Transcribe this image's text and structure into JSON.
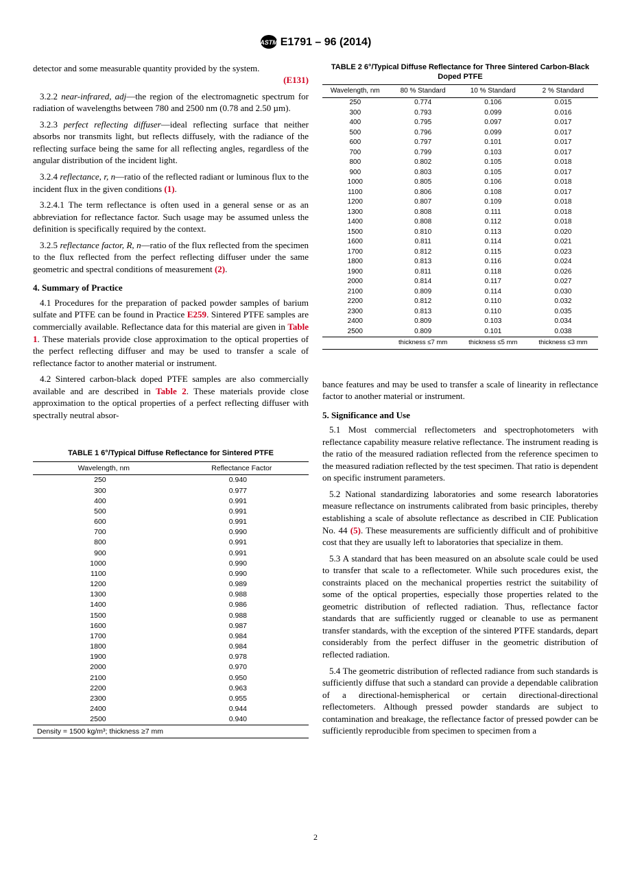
{
  "doc_id": "E1791 – 96 (2014)",
  "page_number": "2",
  "left": {
    "p0": "detector and some measurable quantity provided by the system.",
    "ref0": "(E131)",
    "p322_lead": "3.2.2 ",
    "p322_term": "near-infrared, adj",
    "p322_rest": "—the region of the electromagnetic spectrum for radiation of wavelengths between 780 and 2500 nm (0.78 and 2.50 µm).",
    "p323_lead": "3.2.3 ",
    "p323_term": "perfect reflecting diffuser",
    "p323_rest": "—ideal reflecting surface that neither absorbs nor transmits light, but reflects diffusely, with the radiance of the reflecting surface being the same for all reflecting angles, regardless of the angular distribution of the incident light.",
    "p324_lead": "3.2.4 ",
    "p324_term": "reflectance, r, n",
    "p324_rest": "—ratio of the reflected radiant or luminous flux to the incident flux in the given conditions ",
    "ref1": "(1)",
    "p3241": "3.2.4.1 The term reflectance is often used in a general sense or as an abbreviation for reflectance factor. Such usage may be assumed unless the definition is specifically required by the context.",
    "p325_lead": "3.2.5 ",
    "p325_term": "reflectance factor, R, n",
    "p325_rest": "—ratio of the flux reflected from the specimen to the flux reflected from the perfect reflecting diffuser under the same geometric and spectral conditions of measurement ",
    "ref2": "(2)",
    "h4": "4. Summary of Practice",
    "p41a": "4.1 Procedures for the preparation of packed powder samples of barium sulfate and PTFE can be found in Practice ",
    "p41_e259": "E259",
    "p41b": ". Sintered PTFE samples are commercially available. Reflectance data for this material are given in ",
    "p41_t1": "Table 1",
    "p41c": ". These materials provide close approximation to the optical properties of the perfect reflecting diffuser and may be used to transfer a scale of reflectance factor to another material or instrument.",
    "p42a": "4.2 Sintered carbon-black doped PTFE samples are also commercially available and are described in ",
    "p42_t2": "Table 2",
    "p42b": ". These materials provide close approximation to the optical properties of a perfect reflecting diffuser with spectrally neutral absor-"
  },
  "table1": {
    "caption": "TABLE 1 6°/Typical Diffuse Reflectance for Sintered PTFE",
    "col1": "Wavelength, nm",
    "col2": "Reflectance Factor",
    "rows": [
      [
        "250",
        "0.940"
      ],
      [
        "300",
        "0.977"
      ],
      [
        "400",
        "0.991"
      ],
      [
        "500",
        "0.991"
      ],
      [
        "600",
        "0.991"
      ],
      [
        "700",
        "0.990"
      ],
      [
        "800",
        "0.991"
      ],
      [
        "900",
        "0.991"
      ],
      [
        "1000",
        "0.990"
      ],
      [
        "1100",
        "0.990"
      ],
      [
        "1200",
        "0.989"
      ],
      [
        "1300",
        "0.988"
      ],
      [
        "1400",
        "0.986"
      ],
      [
        "1500",
        "0.988"
      ],
      [
        "1600",
        "0.987"
      ],
      [
        "1700",
        "0.984"
      ],
      [
        "1800",
        "0.984"
      ],
      [
        "1900",
        "0.978"
      ],
      [
        "2000",
        "0.970"
      ],
      [
        "2100",
        "0.950"
      ],
      [
        "2200",
        "0.963"
      ],
      [
        "2300",
        "0.955"
      ],
      [
        "2400",
        "0.944"
      ],
      [
        "2500",
        "0.940"
      ]
    ],
    "foot": "Density = 1500 kg/m³; thickness ≥7 mm"
  },
  "table2": {
    "caption": "TABLE 2 6°/Typical Diffuse Reflectance for Three Sintered Carbon-Black Doped PTFE",
    "col1": "Wavelength, nm",
    "col2": "80 % Standard",
    "col3": "10 % Standard",
    "col4": "2 % Standard",
    "rows": [
      [
        "250",
        "0.774",
        "0.106",
        "0.015"
      ],
      [
        "300",
        "0.793",
        "0.099",
        "0.016"
      ],
      [
        "400",
        "0.795",
        "0.097",
        "0.017"
      ],
      [
        "500",
        "0.796",
        "0.099",
        "0.017"
      ],
      [
        "600",
        "0.797",
        "0.101",
        "0.017"
      ],
      [
        "700",
        "0.799",
        "0.103",
        "0.017"
      ],
      [
        "800",
        "0.802",
        "0.105",
        "0.018"
      ],
      [
        "900",
        "0.803",
        "0.105",
        "0.017"
      ],
      [
        "1000",
        "0.805",
        "0.106",
        "0.018"
      ],
      [
        "1100",
        "0.806",
        "0.108",
        "0.017"
      ],
      [
        "1200",
        "0.807",
        "0.109",
        "0.018"
      ],
      [
        "1300",
        "0.808",
        "0.111",
        "0.018"
      ],
      [
        "1400",
        "0.808",
        "0.112",
        "0.018"
      ],
      [
        "1500",
        "0.810",
        "0.113",
        "0.020"
      ],
      [
        "1600",
        "0.811",
        "0.114",
        "0.021"
      ],
      [
        "1700",
        "0.812",
        "0.115",
        "0.023"
      ],
      [
        "1800",
        "0.813",
        "0.116",
        "0.024"
      ],
      [
        "1900",
        "0.811",
        "0.118",
        "0.026"
      ],
      [
        "2000",
        "0.814",
        "0.117",
        "0.027"
      ],
      [
        "2100",
        "0.809",
        "0.114",
        "0.030"
      ],
      [
        "2200",
        "0.812",
        "0.110",
        "0.032"
      ],
      [
        "2300",
        "0.813",
        "0.110",
        "0.035"
      ],
      [
        "2400",
        "0.809",
        "0.103",
        "0.034"
      ],
      [
        "2500",
        "0.809",
        "0.101",
        "0.038"
      ]
    ],
    "foot2": "thickness ≤7 mm",
    "foot3": "thickness ≤5 mm",
    "foot4": "thickness ≤3 mm"
  },
  "right": {
    "pcont": "bance features and may be used to transfer a scale of linearity in reflectance factor to another material or instrument.",
    "h5": "5. Significance and Use",
    "p51": "5.1 Most commercial reflectometers and spectrophotometers with reflectance capability measure relative reflectance. The instrument reading is the ratio of the measured radiation reflected from the reference specimen to the measured radiation reflected by the test specimen. That ratio is dependent on specific instrument parameters.",
    "p52a": "5.2 National standardizing laboratories and some research laboratories measure reflectance on instruments calibrated from basic principles, thereby establishing a scale of absolute reflectance as described in CIE Publication No. 44 ",
    "ref5": "(5)",
    "p52b": ". These measurements are sufficiently difficult and of prohibitive cost that they are usually left to laboratories that specialize in them.",
    "p53": "5.3 A standard that has been measured on an absolute scale could be used to transfer that scale to a reflectometer. While such procedures exist, the constraints placed on the mechanical properties restrict the suitability of some of the optical properties, especially those properties related to the geometric distribution of reflected radiation. Thus, reflectance factor standards that are sufficiently rugged or cleanable to use as permanent transfer standards, with the exception of the sintered PTFE standards, depart considerably from the perfect diffuser in the geometric distribution of reflected radiation.",
    "p54": "5.4 The geometric distribution of reflected radiance from such standards is sufficiently diffuse that such a standard can provide a dependable calibration of a directional-hemispherical or certain directional-directional reflectometers. Although pressed powder standards are subject to contamination and breakage, the reflectance factor of pressed powder can be sufficiently reproducible from specimen to specimen from a"
  }
}
